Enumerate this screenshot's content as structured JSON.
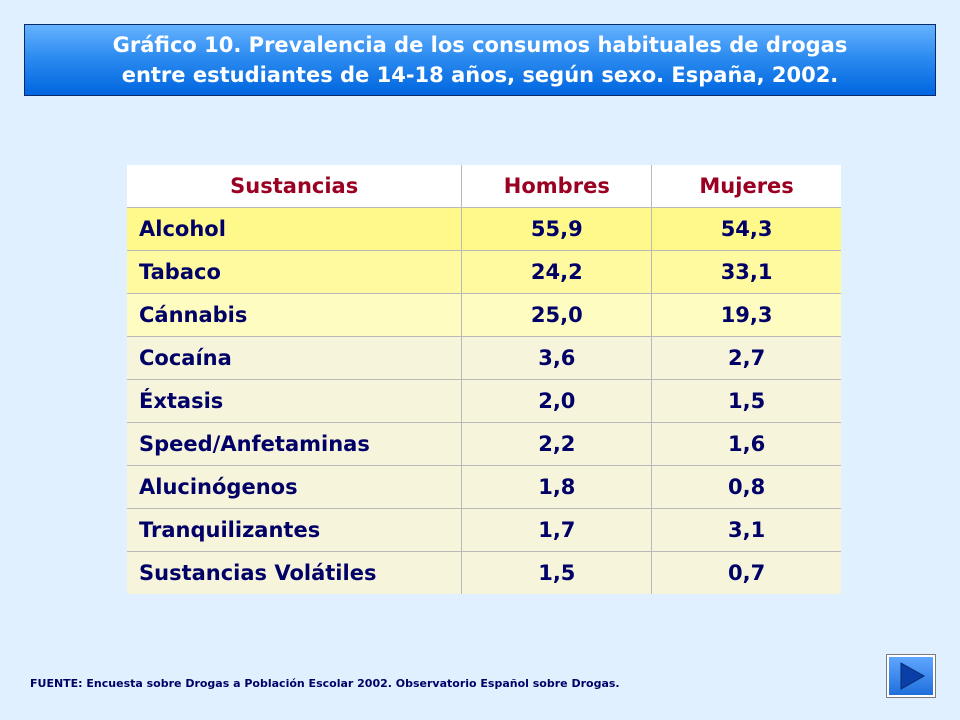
{
  "title": {
    "line1": "Gráfico 10. Prevalencia de los consumos habituales de drogas",
    "line2": "entre estudiantes de 14-18 años, según sexo. España, 2002."
  },
  "table": {
    "headers": [
      "Sustancias",
      "Hombres",
      "Mujeres"
    ],
    "rows": [
      [
        "Alcohol",
        "55,9",
        "54,3"
      ],
      [
        "Tabaco",
        "24,2",
        "33,1"
      ],
      [
        "Cánnabis",
        "25,0",
        "19,3"
      ],
      [
        "Cocaína",
        "3,6",
        "2,7"
      ],
      [
        "Éxtasis",
        "2,0",
        "1,5"
      ],
      [
        "Speed/Anfetaminas",
        "2,2",
        "1,6"
      ],
      [
        "Alucinógenos",
        "1,8",
        "0,8"
      ],
      [
        "Tranquilizantes",
        "1,7",
        "3,1"
      ],
      [
        "Sustancias Volátiles",
        "1,5",
        "0,7"
      ]
    ]
  },
  "source": "FUENTE: Encuesta sobre Drogas a Población Escolar 2002. Observatorio Español sobre Drogas.",
  "next_button": {
    "icon": "play-right-icon"
  },
  "colors": {
    "title_bg": "#2d8cf0",
    "header_text": "#990022",
    "cell_text": "#000066",
    "page_bg": "#e0f0ff"
  }
}
